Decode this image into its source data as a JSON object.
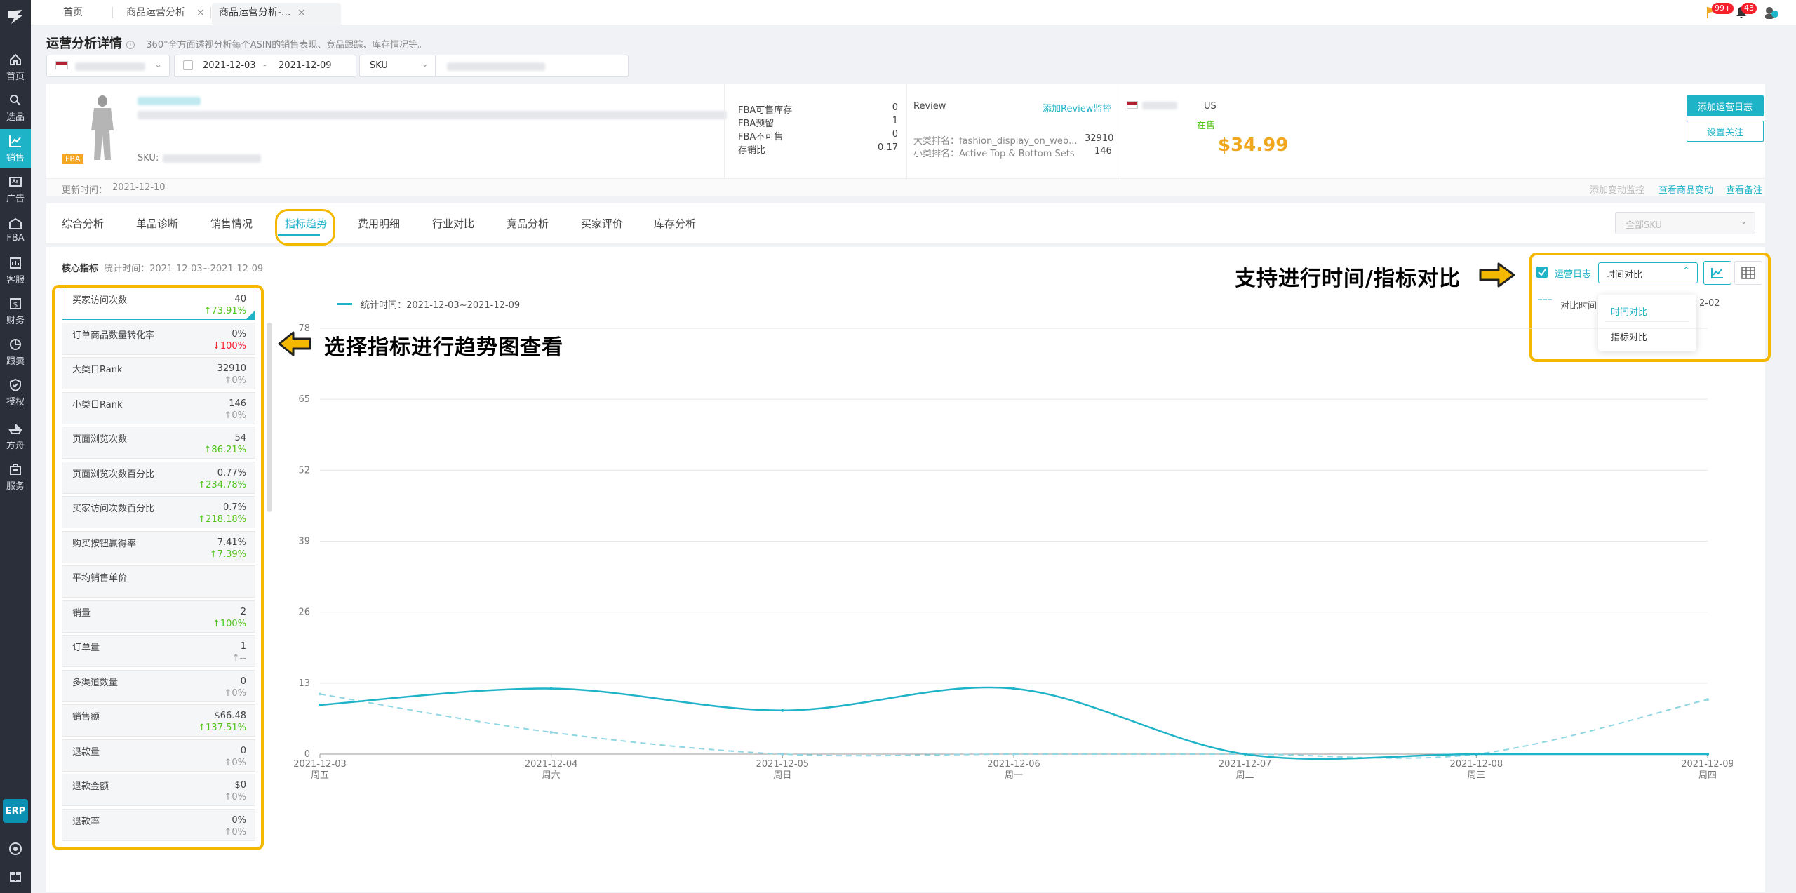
{
  "nav": {
    "items": [
      {
        "label": "首页",
        "icon": "home-icon"
      },
      {
        "label": "选品",
        "icon": "search-icon"
      },
      {
        "label": "销售",
        "icon": "sales-chart-icon"
      },
      {
        "label": "广告",
        "icon": "ad-icon"
      },
      {
        "label": "FBA",
        "icon": "warehouse-icon"
      },
      {
        "label": "客服",
        "icon": "service-icon"
      },
      {
        "label": "财务",
        "icon": "finance-icon"
      },
      {
        "label": "跟卖",
        "icon": "follow-sell-icon"
      },
      {
        "label": "授权",
        "icon": "shield-icon"
      },
      {
        "label": "方舟",
        "icon": "ark-icon"
      },
      {
        "label": "服务",
        "icon": "service-building-icon"
      }
    ],
    "erp": "ERP",
    "active_color": "#1fb3c8"
  },
  "tabs": {
    "items": [
      "首页",
      "商品运营分析",
      "商品运营分析-..."
    ],
    "notif_flag_count": "99+",
    "notif_bell_count": "43"
  },
  "page": {
    "title": "运营分析详情",
    "info": "i",
    "desc": "360°全方面透视分析每个ASIN的销售表现、竞品跟踪、库存情况等。"
  },
  "filters": {
    "date_start": "2021-12-03",
    "date_sep": "-",
    "date_end": "2021-12-09",
    "type": "SKU"
  },
  "product": {
    "badge": "FBA",
    "sku_label": "SKU:",
    "stats": [
      {
        "label": "FBA可售库存",
        "value": "0"
      },
      {
        "label": "FBA预留",
        "value": "1"
      },
      {
        "label": "FBA不可售",
        "value": "0"
      },
      {
        "label": "存销比",
        "value": "0.17"
      }
    ],
    "review_label": "Review",
    "review_link": "添加Review监控",
    "rank_big_label": "大类排名：fashion_display_on_web...",
    "rank_big_value": "32910",
    "rank_small_label": "小类排名：Active Top & Bottom Sets",
    "rank_small_value": "146",
    "marketplace": "US",
    "status": "在售",
    "price": "$34.99",
    "btn_log": "添加运营日志",
    "btn_follow": "设置关注",
    "updated_label": "更新时间：",
    "updated_value": "2021-12-10",
    "link_change": "添加变动监控",
    "link_view_change": "查看商品变动",
    "link_view_note": "查看备注"
  },
  "analysis_tabs": [
    "综合分析",
    "单品诊断",
    "销售情况",
    "指标趋势",
    "费用明细",
    "行业对比",
    "竞品分析",
    "买家评价",
    "库存分析"
  ],
  "sku_select": "全部SKU",
  "core": {
    "title": "核心指标",
    "period": "统计时间：2021-12-03~2021-12-09"
  },
  "metrics": [
    {
      "label": "买家访问次数",
      "value": "40",
      "change": "↑73.91%",
      "dir": "up"
    },
    {
      "label": "订单商品数量转化率",
      "value": "0%",
      "change": "↓100%",
      "dir": "down"
    },
    {
      "label": "大类目Rank",
      "value": "32910",
      "change": "↑0%",
      "dir": "flat"
    },
    {
      "label": "小类目Rank",
      "value": "146",
      "change": "↑0%",
      "dir": "flat"
    },
    {
      "label": "页面浏览次数",
      "value": "54",
      "change": "↑86.21%",
      "dir": "up"
    },
    {
      "label": "页面浏览次数百分比",
      "value": "0.77%",
      "change": "↑234.78%",
      "dir": "up"
    },
    {
      "label": "买家访问次数百分比",
      "value": "0.7%",
      "change": "↑218.18%",
      "dir": "up"
    },
    {
      "label": "购买按钮赢得率",
      "value": "7.41%",
      "change": "↑7.39%",
      "dir": "up"
    },
    {
      "label": "平均销售单价",
      "value": "",
      "change": "",
      "dir": "flat"
    },
    {
      "label": "销量",
      "value": "2",
      "change": "↑100%",
      "dir": "up"
    },
    {
      "label": "订单量",
      "value": "1",
      "change": "↑--",
      "dir": "flat"
    },
    {
      "label": "多渠道数量",
      "value": "0",
      "change": "↑0%",
      "dir": "flat"
    },
    {
      "label": "销售额",
      "value": "$66.48",
      "change": "↑137.51%",
      "dir": "up"
    },
    {
      "label": "退款量",
      "value": "0",
      "change": "↑0%",
      "dir": "flat"
    },
    {
      "label": "退款金额",
      "value": "$0",
      "change": "↑0%",
      "dir": "flat"
    },
    {
      "label": "退款率",
      "value": "0%",
      "change": "↑0%",
      "dir": "flat"
    }
  ],
  "annotations": {
    "left": "选择指标进行趋势图查看",
    "right": "支持进行时间/指标对比"
  },
  "controls": {
    "log_label": "运营日志",
    "compare_select": "时间对比",
    "compare_legend_prefix": "对比时间",
    "compare_legend_suffix": "2-02",
    "dropdown": [
      "时间对比",
      "指标对比"
    ]
  },
  "chart_data": {
    "type": "line",
    "legend": "统计时间：2021-12-03~2021-12-09",
    "x": [
      "2021-12-03",
      "2021-12-04",
      "2021-12-05",
      "2021-12-06",
      "2021-12-07",
      "2021-12-08",
      "2021-12-09"
    ],
    "x_sub": [
      "周五",
      "周六",
      "周日",
      "周一",
      "周二",
      "周三",
      "周四"
    ],
    "ylim": [
      0,
      78
    ],
    "yticks": [
      0,
      13,
      26,
      39,
      52,
      65,
      78
    ],
    "grid": true,
    "series": [
      {
        "name": "统计时间：2021-12-03~2021-12-09",
        "values": [
          9,
          12,
          8,
          12,
          0,
          0,
          0
        ],
        "color": "#1fb3c8",
        "style": "solid"
      },
      {
        "name": "对比时间",
        "values": [
          11,
          4,
          0,
          0,
          0,
          0,
          10
        ],
        "color": "#8fd6e3",
        "style": "dashed"
      }
    ]
  }
}
